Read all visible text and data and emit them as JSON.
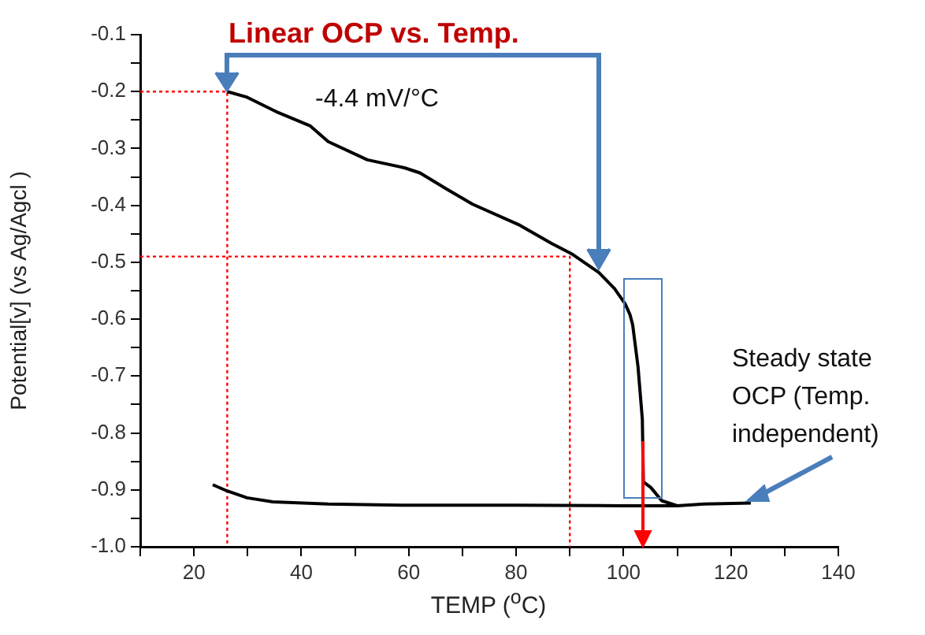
{
  "chart_data": {
    "type": "line",
    "title": "Linear OCP vs. Temp.",
    "xlabel": "TEMP ($^{o}$C)",
    "ylabel": "Potential[v] (vs Ag/Agcl )",
    "annotations": [
      "-4.4 mV/°C",
      {
        "text": "Steady state OCP (Temp. independent)",
        "x": 123.7,
        "y": -0.923
      }
    ],
    "xlim": [
      10,
      140
    ],
    "xticks": [
      {
        "value": 10,
        "label": null
      },
      20,
      {
        "value": 30,
        "label": null
      },
      40,
      {
        "value": 50,
        "label": null
      },
      60,
      {
        "value": 70,
        "label": null
      },
      80,
      {
        "value": 90,
        "label": null
      },
      100,
      {
        "value": 110,
        "label": null
      },
      120,
      {
        "value": 130,
        "label": null
      },
      140
    ],
    "ylim": [
      -1.0,
      -0.1
    ],
    "yticks": [
      {
        "value": -1.0,
        "label": "-1.0"
      },
      {
        "value": -0.95,
        "label": null
      },
      -0.9,
      {
        "value": -0.85,
        "label": null
      },
      -0.8,
      {
        "value": -0.75,
        "label": null
      },
      -0.7,
      {
        "value": -0.65,
        "label": null
      },
      -0.6,
      {
        "value": -0.55,
        "label": null
      },
      -0.5,
      {
        "value": -0.45,
        "label": null
      },
      -0.4,
      {
        "value": -0.35,
        "label": null
      },
      -0.3,
      {
        "value": -0.25,
        "label": null
      },
      -0.2,
      {
        "value": -0.15,
        "label": null
      },
      -0.1
    ],
    "grid": false,
    "marker": "none",
    "series": [
      {
        "color": "#000000",
        "x": [
          26.2,
          29.9,
          35.7,
          41.6,
          45.0,
          52.3,
          59.2,
          62.1,
          67.0,
          71.9,
          80.7,
          86.6,
          90.5,
          95.4,
          98.3,
          100.3,
          101.2,
          101.7,
          102.7,
          103.5,
          103.7,
          105.1,
          107.1,
          110,
          115,
          123.7
        ],
        "values": [
          -0.2,
          -0.21,
          -0.237,
          -0.26,
          -0.288,
          -0.32,
          -0.334,
          -0.343,
          -0.371,
          -0.398,
          -0.435,
          -0.467,
          -0.486,
          -0.518,
          -0.546,
          -0.573,
          -0.592,
          -0.61,
          -0.684,
          -0.776,
          -0.886,
          -0.896,
          -0.919,
          -0.928,
          -0.925,
          -0.923
        ]
      },
      {
        "color": "#000000",
        "x": [
          23.5,
          26.2,
          29.9,
          34.7,
          45,
          60,
          80,
          100,
          110
        ],
        "values": [
          -0.891,
          -0.902,
          -0.914,
          -0.921,
          -0.925,
          -0.927,
          -0.927,
          -0.928,
          -0.928
        ]
      },
      {
        "color": "#ff0000",
        "line_style": "dotted",
        "x": [
          10,
          26.2,
          26.2
        ],
        "values": [
          -0.2,
          -0.2,
          -1.0
        ]
      },
      {
        "color": "#ff0000",
        "line_style": "dotted",
        "x": [
          10,
          90,
          90
        ],
        "values": [
          -0.49,
          -0.49,
          -1.0
        ]
      }
    ]
  }
}
